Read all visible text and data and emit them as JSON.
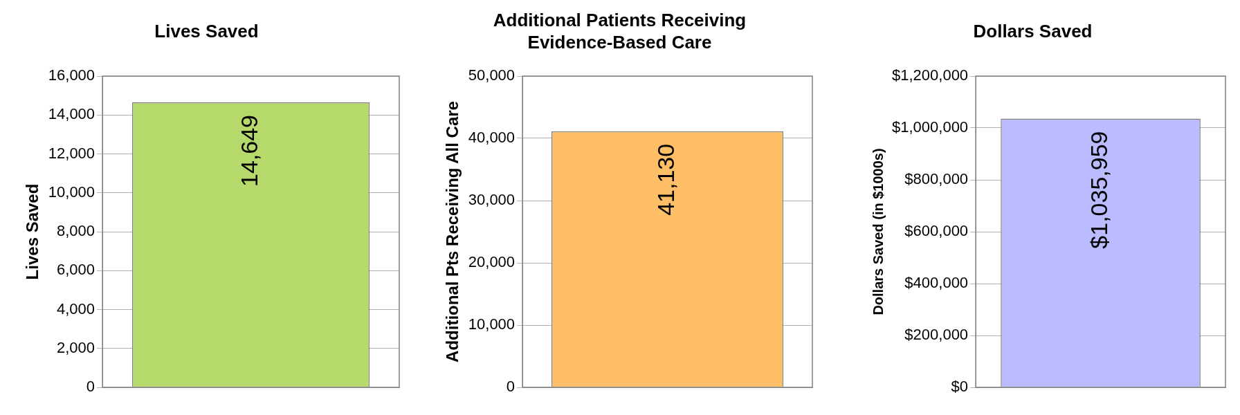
{
  "chart_data": [
    {
      "type": "bar",
      "title": "Lives Saved",
      "ylabel": "Lives Saved",
      "categories": [
        null
      ],
      "values": [
        14649
      ],
      "color": "#b5d96a",
      "value_labels": [
        "14,649"
      ],
      "ylim": [
        0,
        16000
      ],
      "yticks": [
        {
          "value": 0,
          "label": "0"
        },
        {
          "value": 2000,
          "label": "2,000"
        },
        {
          "value": 4000,
          "label": "4,000"
        },
        {
          "value": 6000,
          "label": "6,000"
        },
        {
          "value": 8000,
          "label": "8,000"
        },
        {
          "value": 10000,
          "label": "10,000"
        },
        {
          "value": 12000,
          "label": "12,000"
        },
        {
          "value": 14000,
          "label": "14,000"
        },
        {
          "value": 16000,
          "label": "16,000"
        }
      ],
      "grid": "y"
    },
    {
      "type": "bar",
      "title": "Additional Patients Receiving Evidence-Based Care",
      "ylabel": "Additional Pts Receiving All Care",
      "categories": [
        null
      ],
      "values": [
        41130
      ],
      "color": "#ffbf66",
      "value_labels": [
        "41,130"
      ],
      "ylim": [
        0,
        50000
      ],
      "yticks": [
        {
          "value": 0,
          "label": "0"
        },
        {
          "value": 10000,
          "label": "10,000"
        },
        {
          "value": 20000,
          "label": "20,000"
        },
        {
          "value": 30000,
          "label": "30,000"
        },
        {
          "value": 40000,
          "label": "40,000"
        },
        {
          "value": 50000,
          "label": "50,000"
        }
      ],
      "grid": "y"
    },
    {
      "type": "bar",
      "title": "Dollars Saved",
      "ylabel": "Dollars Saved (in $1000s)",
      "categories": [
        null
      ],
      "values": [
        1035959
      ],
      "color": "#bbbbff",
      "value_labels": [
        "$1,035,959"
      ],
      "ylim": [
        0,
        1200000
      ],
      "yticks": [
        {
          "value": 0,
          "label": "$0"
        },
        {
          "value": 200000,
          "label": "$200,000"
        },
        {
          "value": 400000,
          "label": "$400,000"
        },
        {
          "value": 600000,
          "label": "$600,000"
        },
        {
          "value": 800000,
          "label": "$800,000"
        },
        {
          "value": 1000000,
          "label": "$1,000,000"
        },
        {
          "value": 1200000,
          "label": "$1,200,000"
        }
      ],
      "grid": "y"
    }
  ]
}
